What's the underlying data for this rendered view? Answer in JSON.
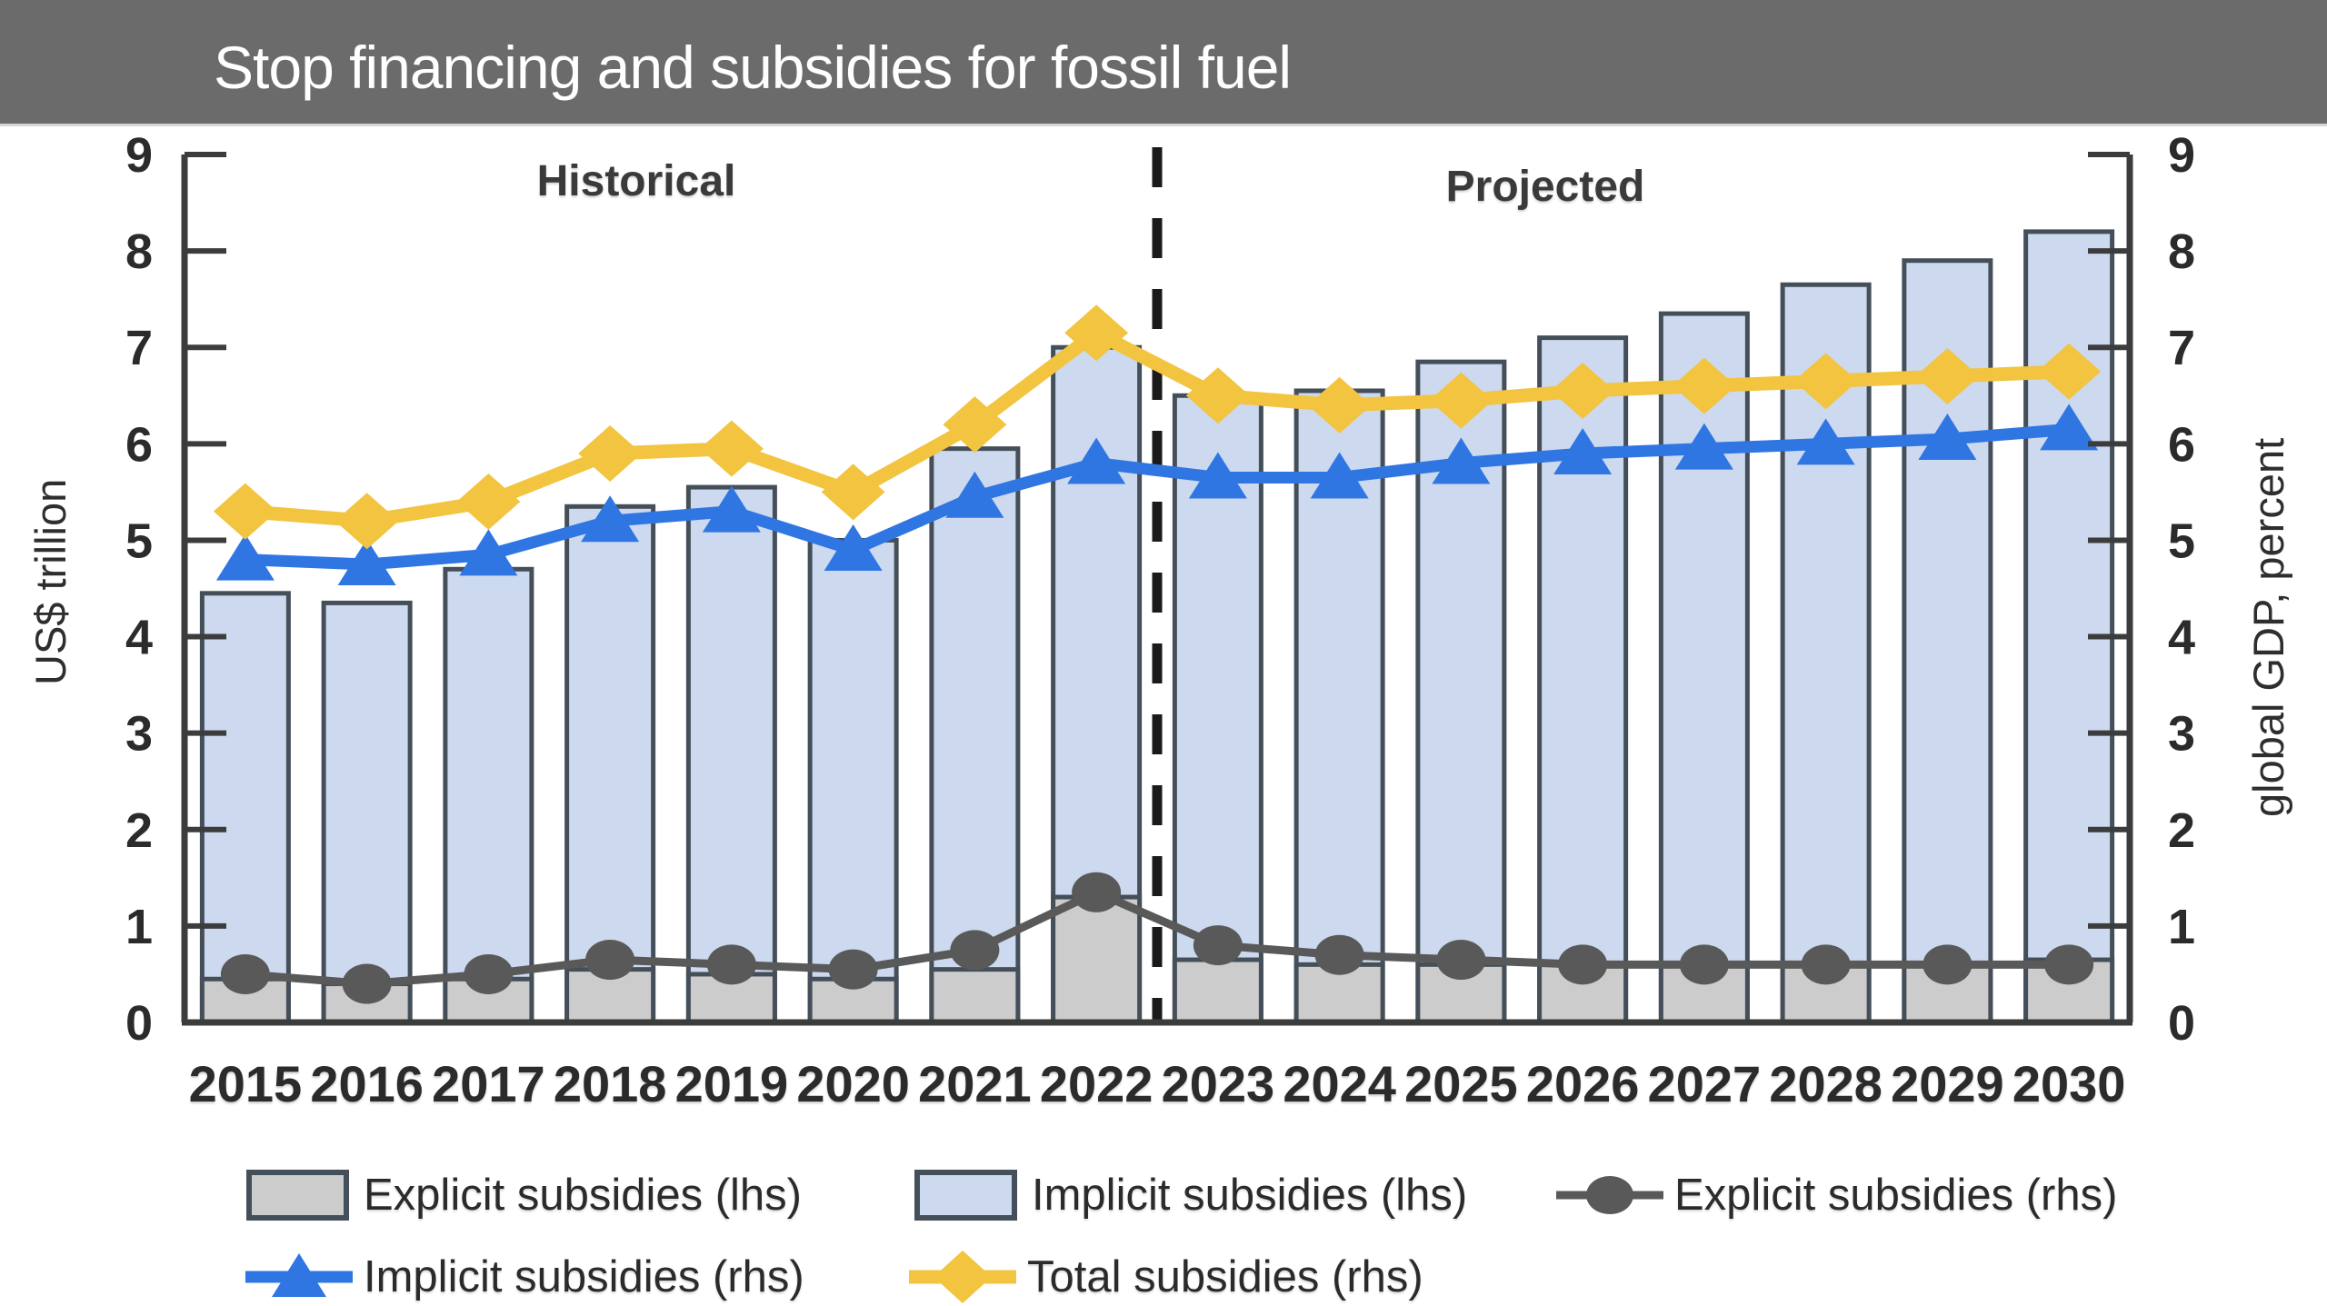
{
  "header": {
    "title": "Stop financing and subsidies for fossil fuel"
  },
  "chart_data": {
    "type": "combo-stacked-bar-line",
    "categories": [
      "2015",
      "2016",
      "2017",
      "2018",
      "2019",
      "2020",
      "2021",
      "2022",
      "2023",
      "2024",
      "2025",
      "2026",
      "2027",
      "2028",
      "2029",
      "2030"
    ],
    "left_axis": {
      "label": "US$ trillion",
      "min": 0,
      "max": 9,
      "ticks": [
        0,
        1,
        2,
        3,
        4,
        5,
        6,
        7,
        8,
        9
      ]
    },
    "right_axis": {
      "label": "global GDP, percent",
      "min": 0,
      "max": 9,
      "ticks": [
        0,
        1,
        2,
        3,
        4,
        5,
        6,
        7,
        8,
        9
      ]
    },
    "annotations": {
      "historical": "Historical",
      "projected": "Projected",
      "divider_after_category": "2022"
    },
    "grid": "off",
    "bar_series": [
      {
        "name": "Explicit subsidies (lhs)",
        "axis": "left",
        "stack": "subsidies",
        "color": "#cccccc",
        "values": [
          0.45,
          0.4,
          0.45,
          0.55,
          0.5,
          0.45,
          0.55,
          1.3,
          0.65,
          0.6,
          0.6,
          0.6,
          0.6,
          0.6,
          0.6,
          0.65
        ]
      },
      {
        "name": "Implicit subsidies (lhs)",
        "axis": "left",
        "stack": "subsidies",
        "color": "#ccd9ee",
        "values": [
          4.0,
          3.95,
          4.25,
          4.8,
          5.05,
          4.55,
          5.4,
          5.7,
          5.85,
          5.95,
          6.25,
          6.5,
          6.75,
          7.05,
          7.3,
          7.55
        ]
      }
    ],
    "line_series": [
      {
        "name": "Explicit subsidies (rhs)",
        "axis": "right",
        "color": "#595959",
        "marker": "circle",
        "values": [
          0.5,
          0.4,
          0.5,
          0.65,
          0.6,
          0.55,
          0.75,
          1.35,
          0.8,
          0.7,
          0.65,
          0.6,
          0.6,
          0.6,
          0.6,
          0.6
        ]
      },
      {
        "name": "Implicit subsidies (rhs)",
        "axis": "right",
        "color": "#2f76e3",
        "marker": "triangle",
        "values": [
          4.8,
          4.75,
          4.85,
          5.2,
          5.3,
          4.9,
          5.45,
          5.8,
          5.65,
          5.65,
          5.8,
          5.9,
          5.95,
          6.0,
          6.05,
          6.15
        ]
      },
      {
        "name": "Total subsidies (rhs)",
        "axis": "right",
        "color": "#f2c440",
        "marker": "diamond",
        "values": [
          5.3,
          5.2,
          5.4,
          5.9,
          5.95,
          5.5,
          6.2,
          7.15,
          6.5,
          6.4,
          6.45,
          6.55,
          6.6,
          6.65,
          6.7,
          6.75
        ]
      }
    ],
    "legend": {
      "position": "bottom",
      "items": [
        {
          "label": "Explicit subsidies (lhs)",
          "swatch": "bar",
          "color": "#cccccc",
          "row": 1
        },
        {
          "label": "Implicit subsidies (lhs)",
          "swatch": "bar",
          "color": "#ccd9ee",
          "row": 1
        },
        {
          "label": "Explicit subsidies (rhs)",
          "swatch": "line-circle",
          "color": "#595959",
          "row": 1
        },
        {
          "label": "Implicit subsidies (rhs)",
          "swatch": "line-triangle",
          "color": "#2f76e3",
          "row": 2
        },
        {
          "label": "Total subsidies (rhs)",
          "swatch": "line-diamond",
          "color": "#f2c440",
          "row": 2
        }
      ]
    }
  },
  "colors": {
    "header_bg": "#6b6b6b",
    "bar_border": "#454f59",
    "axis": "#3c3c3c",
    "tick_text": "#2b2b2b",
    "divider": "#1a1a1a"
  }
}
